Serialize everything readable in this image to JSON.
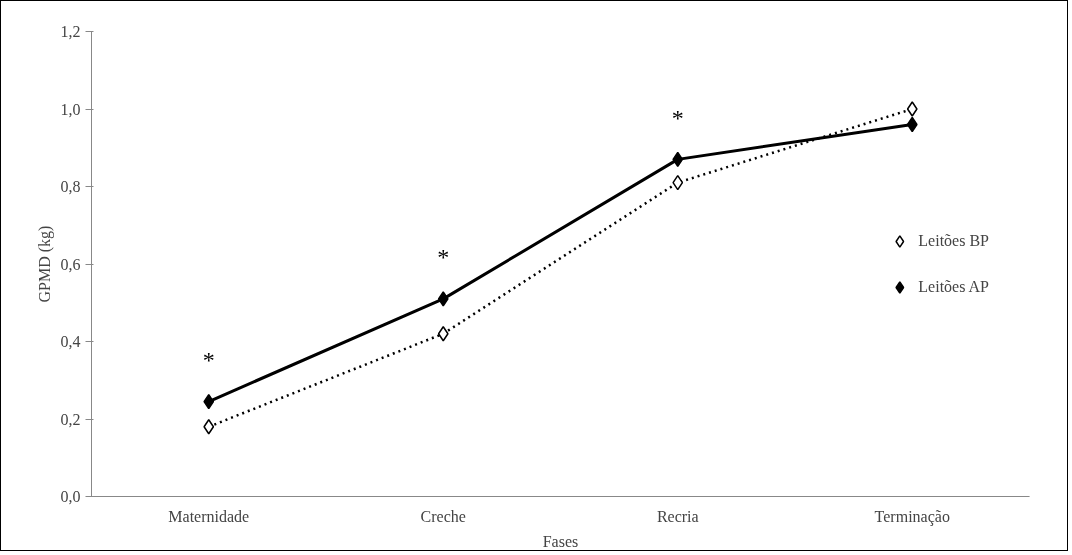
{
  "chart_data": {
    "type": "line",
    "xlabel": "Fases",
    "ylabel": "GPMD (kg)",
    "categories": [
      "Maternidade",
      "Creche",
      "Recria",
      "Terminação"
    ],
    "series": [
      {
        "name": "Leitões BP",
        "color": "#000000",
        "line_style": "dotted",
        "values": [
          0.18,
          0.42,
          0.81,
          1.0
        ]
      },
      {
        "name": "Leitões AP",
        "color": "#000000",
        "line_style": "solid",
        "values": [
          0.245,
          0.51,
          0.87,
          0.96
        ]
      }
    ],
    "annotations": [
      "*",
      "*",
      "*"
    ],
    "ylim": [
      0,
      1.2
    ],
    "yticks": [
      {
        "value": 0,
        "label": "0,0"
      },
      {
        "value": 0.2,
        "label": "0,2"
      },
      {
        "value": 0.4,
        "label": "0,4"
      },
      {
        "value": 0.6,
        "label": "0,6"
      },
      {
        "value": 0.8,
        "label": "0,8"
      },
      {
        "value": 1.0,
        "label": "1,0"
      },
      {
        "value": 1.2,
        "label": "1,2"
      }
    ],
    "marker": "diamond",
    "legend": "right",
    "grid": false
  }
}
